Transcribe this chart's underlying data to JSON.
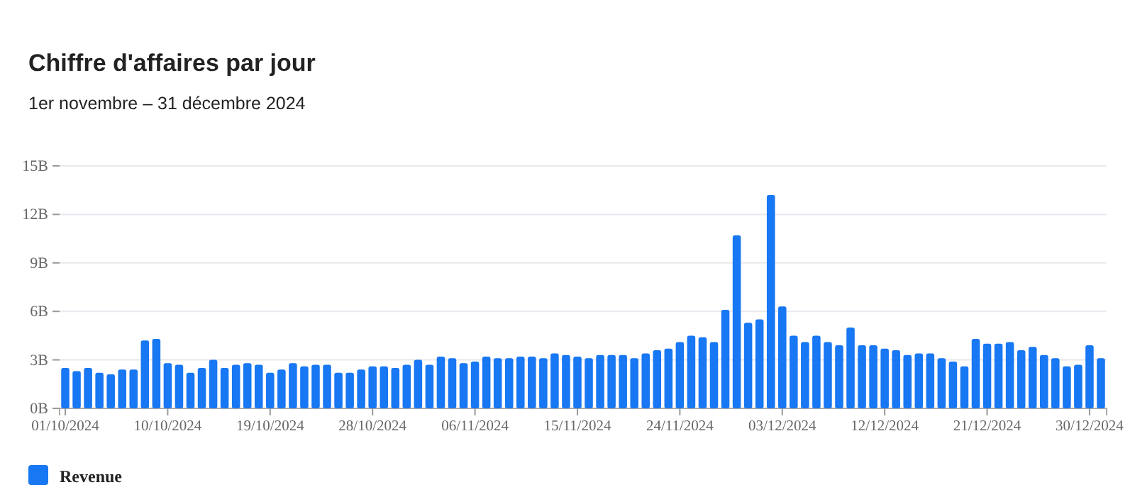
{
  "chart_data": {
    "type": "bar",
    "title": "Chiffre d'affaires par jour",
    "subtitle": "1er novembre – 31 décembre 2024",
    "x": [
      "2024-10-01",
      "2024-10-02",
      "2024-10-03",
      "2024-10-04",
      "2024-10-05",
      "2024-10-06",
      "2024-10-07",
      "2024-10-08",
      "2024-10-09",
      "2024-10-10",
      "2024-10-11",
      "2024-10-12",
      "2024-10-13",
      "2024-10-14",
      "2024-10-15",
      "2024-10-16",
      "2024-10-17",
      "2024-10-18",
      "2024-10-19",
      "2024-10-20",
      "2024-10-21",
      "2024-10-22",
      "2024-10-23",
      "2024-10-24",
      "2024-10-25",
      "2024-10-26",
      "2024-10-27",
      "2024-10-28",
      "2024-10-29",
      "2024-10-30",
      "2024-10-31",
      "2024-11-01",
      "2024-11-02",
      "2024-11-03",
      "2024-11-04",
      "2024-11-05",
      "2024-11-06",
      "2024-11-07",
      "2024-11-08",
      "2024-11-09",
      "2024-11-10",
      "2024-11-11",
      "2024-11-12",
      "2024-11-13",
      "2024-11-14",
      "2024-11-15",
      "2024-11-16",
      "2024-11-17",
      "2024-11-18",
      "2024-11-19",
      "2024-11-20",
      "2024-11-21",
      "2024-11-22",
      "2024-11-23",
      "2024-11-24",
      "2024-11-25",
      "2024-11-26",
      "2024-11-27",
      "2024-11-28",
      "2024-11-29",
      "2024-11-30",
      "2024-12-01",
      "2024-12-02",
      "2024-12-03",
      "2024-12-04",
      "2024-12-05",
      "2024-12-06",
      "2024-12-07",
      "2024-12-08",
      "2024-12-09",
      "2024-12-10",
      "2024-12-11",
      "2024-12-12",
      "2024-12-13",
      "2024-12-14",
      "2024-12-15",
      "2024-12-16",
      "2024-12-17",
      "2024-12-18",
      "2024-12-19",
      "2024-12-20",
      "2024-12-21",
      "2024-12-22",
      "2024-12-23",
      "2024-12-24",
      "2024-12-25",
      "2024-12-26",
      "2024-12-27",
      "2024-12-28",
      "2024-12-29",
      "2024-12-30",
      "2024-12-31"
    ],
    "series": [
      {
        "name": "Revenue",
        "color": "#1877f2",
        "values": [
          2.5,
          2.3,
          2.5,
          2.2,
          2.1,
          2.4,
          2.4,
          4.2,
          4.3,
          2.8,
          2.7,
          2.2,
          2.5,
          3.0,
          2.5,
          2.7,
          2.8,
          2.7,
          2.2,
          2.4,
          2.8,
          2.6,
          2.7,
          2.7,
          2.2,
          2.2,
          2.4,
          2.6,
          2.6,
          2.5,
          2.7,
          3.0,
          2.7,
          3.2,
          3.1,
          2.8,
          2.9,
          3.2,
          3.1,
          3.1,
          3.2,
          3.2,
          3.1,
          3.4,
          3.3,
          3.2,
          3.1,
          3.3,
          3.3,
          3.3,
          3.1,
          3.4,
          3.6,
          3.7,
          4.1,
          4.5,
          4.4,
          4.1,
          6.1,
          10.7,
          5.3,
          5.5,
          13.2,
          6.3,
          4.5,
          4.1,
          4.5,
          4.1,
          3.9,
          5.0,
          3.9,
          3.9,
          3.7,
          3.6,
          3.3,
          3.4,
          3.4,
          3.1,
          2.9,
          2.6,
          4.3,
          4.0,
          4.0,
          4.1,
          3.6,
          3.8,
          3.3,
          3.1,
          2.6,
          2.7,
          3.9,
          3.1
        ]
      }
    ],
    "xlim": [
      "2024-09-30T12:00",
      "2024-12-31T12:00"
    ],
    "xticks": [
      {
        "value": "2024-10-01",
        "label": "01/10/2024"
      },
      {
        "value": "2024-10-10",
        "label": "10/10/2024"
      },
      {
        "value": "2024-10-19",
        "label": "19/10/2024"
      },
      {
        "value": "2024-10-28",
        "label": "28/10/2024"
      },
      {
        "value": "2024-11-06",
        "label": "06/11/2024"
      },
      {
        "value": "2024-11-15",
        "label": "15/11/2024"
      },
      {
        "value": "2024-11-24",
        "label": "24/11/2024"
      },
      {
        "value": "2024-12-03",
        "label": "03/12/2024"
      },
      {
        "value": "2024-12-12",
        "label": "12/12/2024"
      },
      {
        "value": "2024-12-21",
        "label": "21/12/2024"
      },
      {
        "value": "2024-12-30",
        "label": "30/12/2024"
      }
    ],
    "ylim": [
      0,
      15
    ],
    "yticks": [
      {
        "value": 0,
        "label": "0B"
      },
      {
        "value": 3,
        "label": "3B"
      },
      {
        "value": 6,
        "label": "6B"
      },
      {
        "value": 9,
        "label": "9B"
      },
      {
        "value": 12,
        "label": "12B"
      },
      {
        "value": 15,
        "label": "15B"
      }
    ],
    "grid": "y",
    "legend": "bottom left"
  }
}
